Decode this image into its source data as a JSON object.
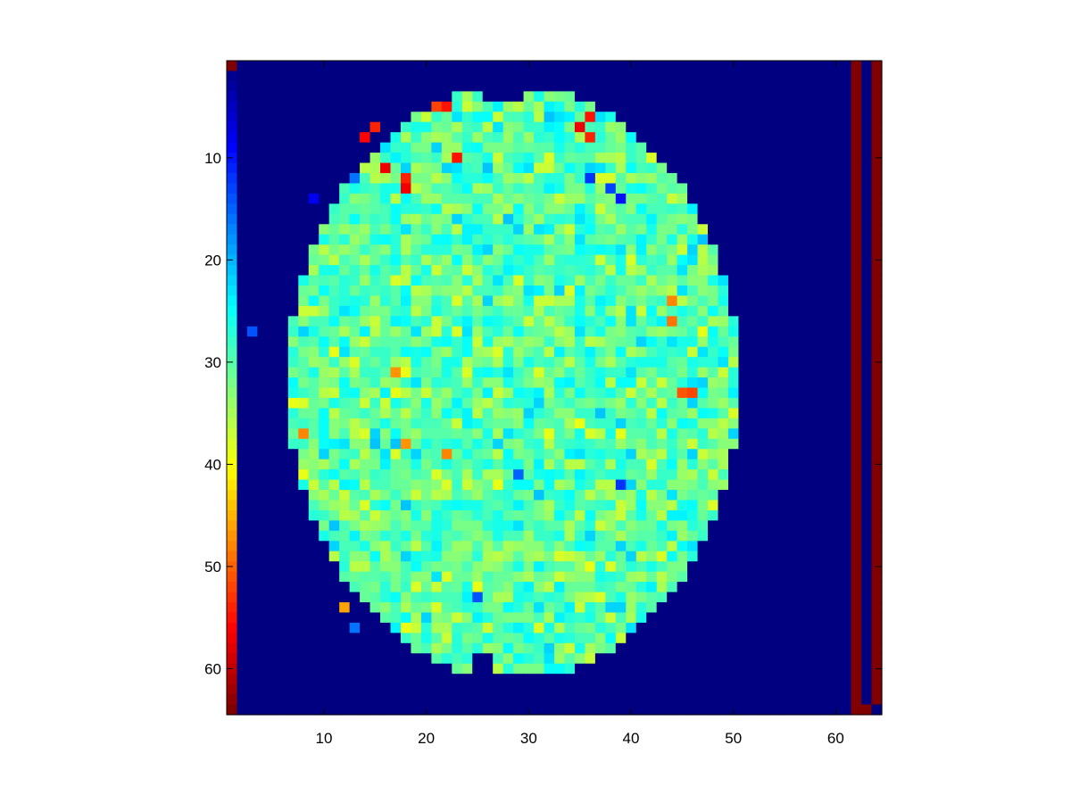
{
  "chart_data": {
    "type": "heatmap",
    "title": "",
    "xlabel": "",
    "ylabel": "",
    "rows": 64,
    "cols": 64,
    "x_range": [
      0.5,
      64.5
    ],
    "y_range": [
      0.5,
      64.5
    ],
    "y_direction": "top-to-bottom",
    "x_ticks": [
      10,
      20,
      30,
      40,
      50,
      60
    ],
    "x_tick_labels": [
      "10",
      "20",
      "30",
      "40",
      "50",
      "60"
    ],
    "y_ticks": [
      10,
      20,
      30,
      40,
      50,
      60
    ],
    "y_tick_labels": [
      "10",
      "20",
      "30",
      "40",
      "50",
      "60"
    ],
    "colormap": "jet",
    "value_range": [
      1,
      64
    ],
    "background_value": 1,
    "colorbar_column": {
      "description": "column 1 holds the ramp value = row index (1 at top, 64 at bottom)",
      "column": 1
    },
    "brain_region": {
      "shape": "axial brain slice",
      "center_col": 28.5,
      "center_row": 32,
      "half_width_cols": 22,
      "half_height_rows": 29,
      "typical_value": 30,
      "value_spread": 6,
      "bright_spots": [
        {
          "row": 5,
          "col": 21,
          "value": 52
        },
        {
          "row": 5,
          "col": 22,
          "value": 55
        },
        {
          "row": 6,
          "col": 36,
          "value": 55
        },
        {
          "row": 7,
          "col": 15,
          "value": 54
        },
        {
          "row": 8,
          "col": 14,
          "value": 56
        },
        {
          "row": 7,
          "col": 35,
          "value": 57
        },
        {
          "row": 8,
          "col": 36,
          "value": 54
        },
        {
          "row": 10,
          "col": 23,
          "value": 55
        },
        {
          "row": 11,
          "col": 16,
          "value": 57
        },
        {
          "row": 12,
          "col": 18,
          "value": 54
        },
        {
          "row": 13,
          "col": 18,
          "value": 57
        },
        {
          "row": 24,
          "col": 44,
          "value": 48
        },
        {
          "row": 26,
          "col": 44,
          "value": 49
        },
        {
          "row": 31,
          "col": 17,
          "value": 47
        },
        {
          "row": 33,
          "col": 45,
          "value": 51
        },
        {
          "row": 33,
          "col": 46,
          "value": 52
        },
        {
          "row": 37,
          "col": 8,
          "value": 48
        },
        {
          "row": 38,
          "col": 18,
          "value": 47
        },
        {
          "row": 39,
          "col": 22,
          "value": 48
        },
        {
          "row": 54,
          "col": 12,
          "value": 46
        }
      ],
      "dark_spots": [
        {
          "row": 12,
          "col": 13,
          "value": 16
        },
        {
          "row": 12,
          "col": 36,
          "value": 12
        },
        {
          "row": 13,
          "col": 38,
          "value": 13
        },
        {
          "row": 14,
          "col": 9,
          "value": 8
        },
        {
          "row": 14,
          "col": 39,
          "value": 10
        },
        {
          "row": 27,
          "col": 3,
          "value": 14
        },
        {
          "row": 41,
          "col": 29,
          "value": 15
        },
        {
          "row": 42,
          "col": 39,
          "value": 12
        },
        {
          "row": 53,
          "col": 25,
          "value": 14
        },
        {
          "row": 56,
          "col": 13,
          "value": 16
        }
      ]
    },
    "right_columns": [
      {
        "col": 62,
        "value": 64
      },
      {
        "col": 63,
        "value": 1,
        "bottom_value": 64
      },
      {
        "col": 64,
        "value": 64,
        "top_value": 64,
        "bottom_value": 1
      }
    ],
    "top_left_cell": {
      "row": 1,
      "col": 1,
      "value": 64
    }
  }
}
